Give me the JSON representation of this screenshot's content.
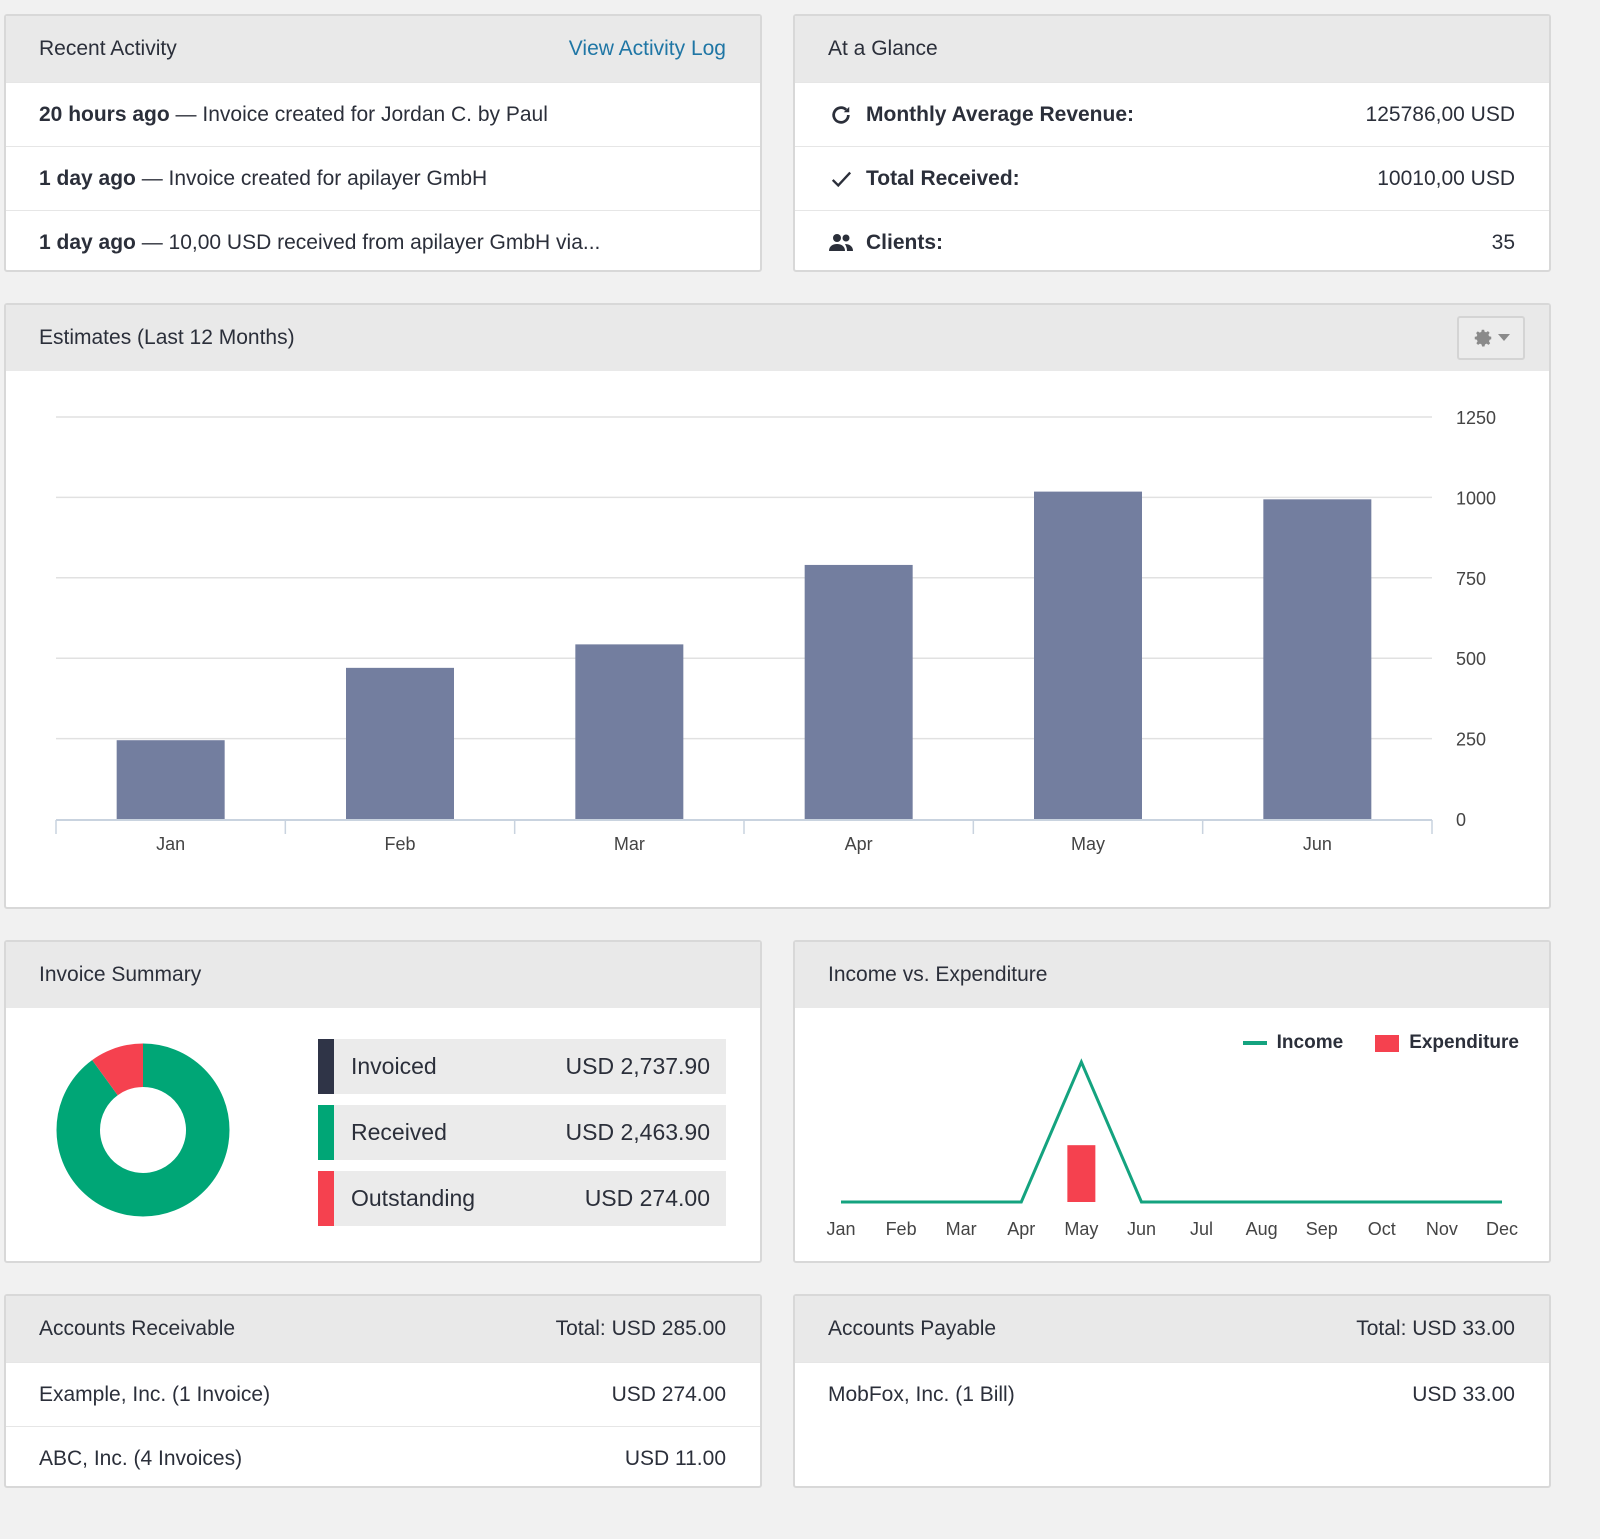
{
  "recent_activity": {
    "title": "Recent Activity",
    "link": "View Activity Log",
    "items": [
      {
        "when": "20 hours ago",
        "text": " — Invoice created for Jordan C. by Paul"
      },
      {
        "when": "1 day ago",
        "text": " — Invoice created for apilayer GmbH"
      },
      {
        "when": "1 day ago",
        "text": " — 10,00 USD received from apilayer GmbH via..."
      }
    ]
  },
  "glance": {
    "title": "At a Glance",
    "rows": [
      {
        "icon": "refresh-icon",
        "label": "Monthly Average Revenue:",
        "value": "125786,00 USD"
      },
      {
        "icon": "check-icon",
        "label": "Total Received:",
        "value": "10010,00 USD"
      },
      {
        "icon": "users-icon",
        "label": "Clients:",
        "value": "35"
      }
    ]
  },
  "estimates": {
    "title": "Estimates (Last 12 Months)"
  },
  "invoice_summary": {
    "title": "Invoice Summary",
    "items": [
      {
        "label": "Invoiced",
        "value": "USD 2,737.90",
        "color": "#2f3447"
      },
      {
        "label": "Received",
        "value": "USD 2,463.90",
        "color": "#00a676"
      },
      {
        "label": "Outstanding",
        "value": "USD 274.00",
        "color": "#f5414f"
      }
    ]
  },
  "income_exp": {
    "title": "Income vs. Expenditure",
    "legend_income": "Income",
    "legend_expenditure": "Expenditure",
    "income_color": "#14a37f",
    "expenditure_color": "#f5414f"
  },
  "receivable": {
    "title": "Accounts Receivable",
    "total": "Total: USD 285.00",
    "rows": [
      {
        "name": "Example, Inc. (1 Invoice)",
        "amount": "USD 274.00"
      },
      {
        "name": "ABC, Inc. (4 Invoices)",
        "amount": "USD 11.00"
      }
    ]
  },
  "payable": {
    "title": "Accounts Payable",
    "total": "Total: USD 33.00",
    "rows": [
      {
        "name": "MobFox, Inc. (1 Bill)",
        "amount": "USD 33.00"
      }
    ]
  },
  "chart_data": [
    {
      "type": "bar",
      "categories": [
        "Jan",
        "Feb",
        "Mar",
        "Apr",
        "May",
        "Jun"
      ],
      "values": [
        245,
        470,
        543,
        790,
        1018,
        994
      ],
      "ylim": [
        0,
        1250
      ],
      "yticks": [
        0,
        250,
        500,
        750,
        1000,
        1250
      ],
      "bar_color": "#737e9f",
      "grid": true
    },
    {
      "type": "pie",
      "labels": [
        "Received",
        "Outstanding"
      ],
      "values": [
        2463.9,
        274.0
      ],
      "colors": [
        "#00a676",
        "#f5414f"
      ]
    },
    {
      "type": "line",
      "categories": [
        "Jan",
        "Feb",
        "Mar",
        "Apr",
        "May",
        "Jun",
        "Jul",
        "Aug",
        "Sep",
        "Oct",
        "Nov",
        "Dec"
      ],
      "series": [
        {
          "name": "Income",
          "type": "line",
          "values": [
            0,
            0,
            0,
            0,
            2463.9,
            0,
            0,
            0,
            0,
            0,
            0,
            0
          ]
        },
        {
          "name": "Expenditure",
          "type": "bar",
          "values": [
            0,
            0,
            0,
            0,
            1000,
            0,
            0,
            0,
            0,
            0,
            0,
            0
          ]
        }
      ],
      "legend": "top-right"
    }
  ]
}
